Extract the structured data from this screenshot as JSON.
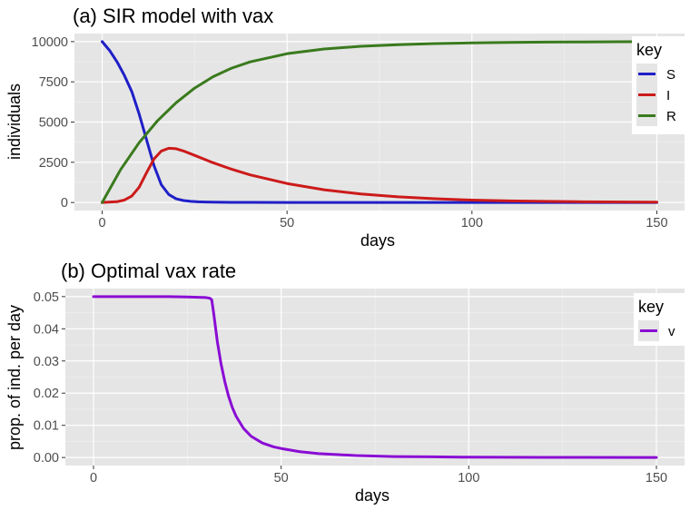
{
  "chart_data": [
    {
      "type": "line",
      "title": "(a) SIR model with vax",
      "xlabel": "days",
      "ylabel": "individuals",
      "xlim": [
        -7.5,
        157.5
      ],
      "ylim": [
        -500,
        10500
      ],
      "xticks": [
        0,
        50,
        100,
        150
      ],
      "xtick_labels": [
        "0",
        "50",
        "100",
        "150"
      ],
      "yticks": [
        0,
        2500,
        5000,
        7500,
        10000
      ],
      "ytick_labels": [
        "0",
        "2500",
        "5000",
        "7500",
        "10000"
      ],
      "grid": true,
      "legend": {
        "title": "key",
        "position": "right",
        "entries": [
          "S",
          "I",
          "R"
        ]
      },
      "series": [
        {
          "name": "S",
          "color": "#1f1fc8",
          "x": [
            0,
            2,
            4,
            6,
            8,
            10,
            12,
            14,
            16,
            18,
            20,
            22,
            24,
            26,
            28,
            30,
            35,
            40,
            50,
            60,
            80,
            100,
            150
          ],
          "y": [
            10000,
            9450,
            8750,
            7900,
            6900,
            5500,
            3900,
            2300,
            1100,
            500,
            230,
            120,
            70,
            40,
            30,
            20,
            10,
            5,
            3,
            2,
            1,
            1,
            0
          ]
        },
        {
          "name": "I",
          "color": "#cc1a1a",
          "x": [
            0,
            4,
            6,
            8,
            10,
            12,
            14,
            16,
            18,
            20,
            22,
            25,
            30,
            35,
            40,
            50,
            60,
            70,
            80,
            90,
            100,
            110,
            120,
            130,
            150
          ],
          "y": [
            0,
            50,
            150,
            400,
            950,
            1850,
            2700,
            3200,
            3370,
            3340,
            3200,
            2930,
            2470,
            2070,
            1720,
            1180,
            790,
            530,
            350,
            230,
            150,
            100,
            70,
            45,
            20
          ]
        },
        {
          "name": "R",
          "color": "#3a7a1e",
          "x": [
            0,
            5,
            10,
            15,
            20,
            25,
            30,
            35,
            40,
            50,
            60,
            70,
            80,
            90,
            100,
            110,
            120,
            130,
            140,
            150
          ],
          "y": [
            0,
            2050,
            3720,
            5090,
            6200,
            7110,
            7820,
            8350,
            8740,
            9250,
            9540,
            9710,
            9810,
            9880,
            9920,
            9950,
            9970,
            9980,
            9990,
            10000
          ]
        }
      ]
    },
    {
      "type": "line",
      "title": "(b) Optimal vax rate",
      "xlabel": "days",
      "ylabel": "prop. of ind. per day",
      "xlim": [
        -7.5,
        157.5
      ],
      "ylim": [
        -0.0025,
        0.0525
      ],
      "xticks": [
        0,
        50,
        100,
        150
      ],
      "xtick_labels": [
        "0",
        "50",
        "100",
        "150"
      ],
      "yticks": [
        0,
        0.01,
        0.02,
        0.03,
        0.04,
        0.05
      ],
      "ytick_labels": [
        "0.00",
        "0.01",
        "0.02",
        "0.03",
        "0.04",
        "0.05"
      ],
      "grid": true,
      "legend": {
        "title": "key",
        "position": "right",
        "entries": [
          "v"
        ]
      },
      "series": [
        {
          "name": "v",
          "color": "#8a0cd4",
          "x": [
            0,
            10,
            20,
            25,
            28,
            30,
            31,
            31.5,
            32,
            33,
            34,
            35,
            36,
            37,
            38,
            40,
            42,
            45,
            48,
            50,
            55,
            60,
            70,
            80,
            90,
            100,
            120,
            150
          ],
          "y": [
            0.05,
            0.05,
            0.05,
            0.0499,
            0.0498,
            0.0497,
            0.0495,
            0.049,
            0.045,
            0.036,
            0.029,
            0.0235,
            0.019,
            0.0155,
            0.0128,
            0.009,
            0.0066,
            0.0045,
            0.0033,
            0.0028,
            0.0018,
            0.0012,
            0.0006,
            0.0003,
            0.0002,
            0.0001,
            5e-05,
            2e-05
          ]
        }
      ]
    }
  ]
}
